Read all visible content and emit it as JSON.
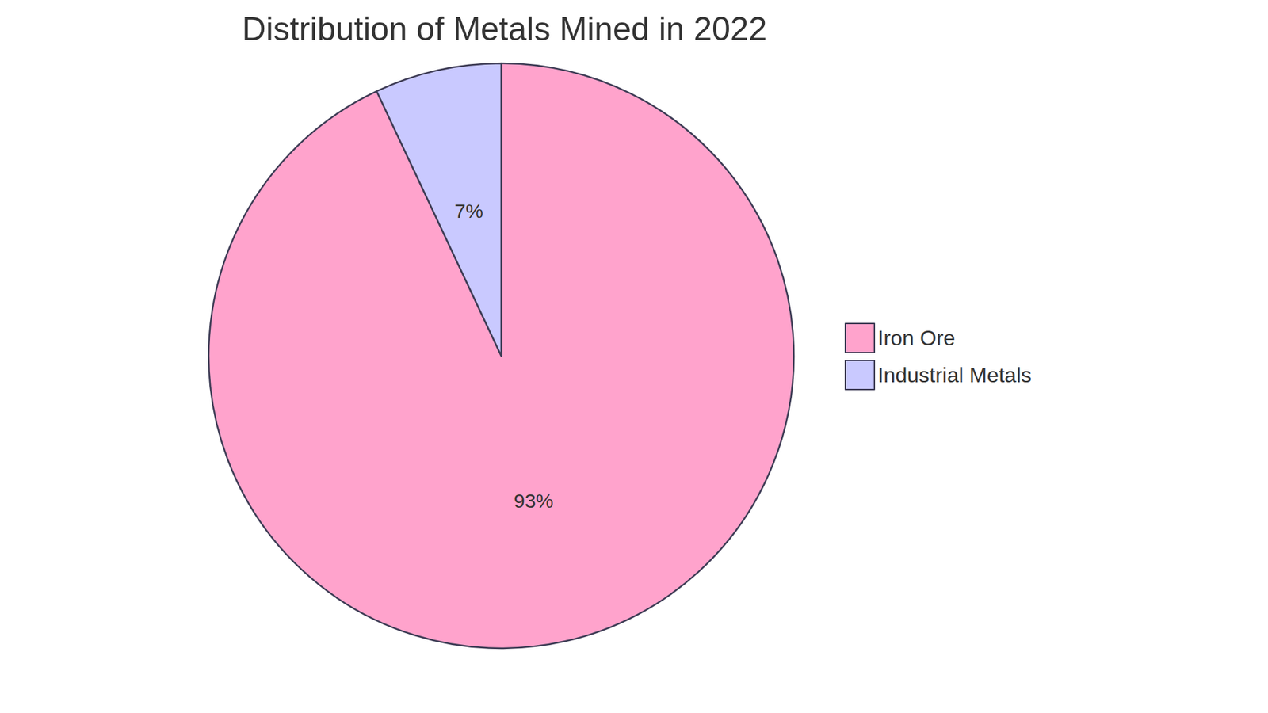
{
  "chart_data": {
    "type": "pie",
    "title": "Distribution of Metals Mined in 2022",
    "categories": [
      "Iron Ore",
      "Industrial Metals"
    ],
    "values": [
      93,
      7
    ],
    "value_labels": [
      "93%",
      "7%"
    ],
    "colors": [
      "#ffa3cc",
      "#c9c9ff"
    ],
    "data_labels": true,
    "legend": "right"
  }
}
